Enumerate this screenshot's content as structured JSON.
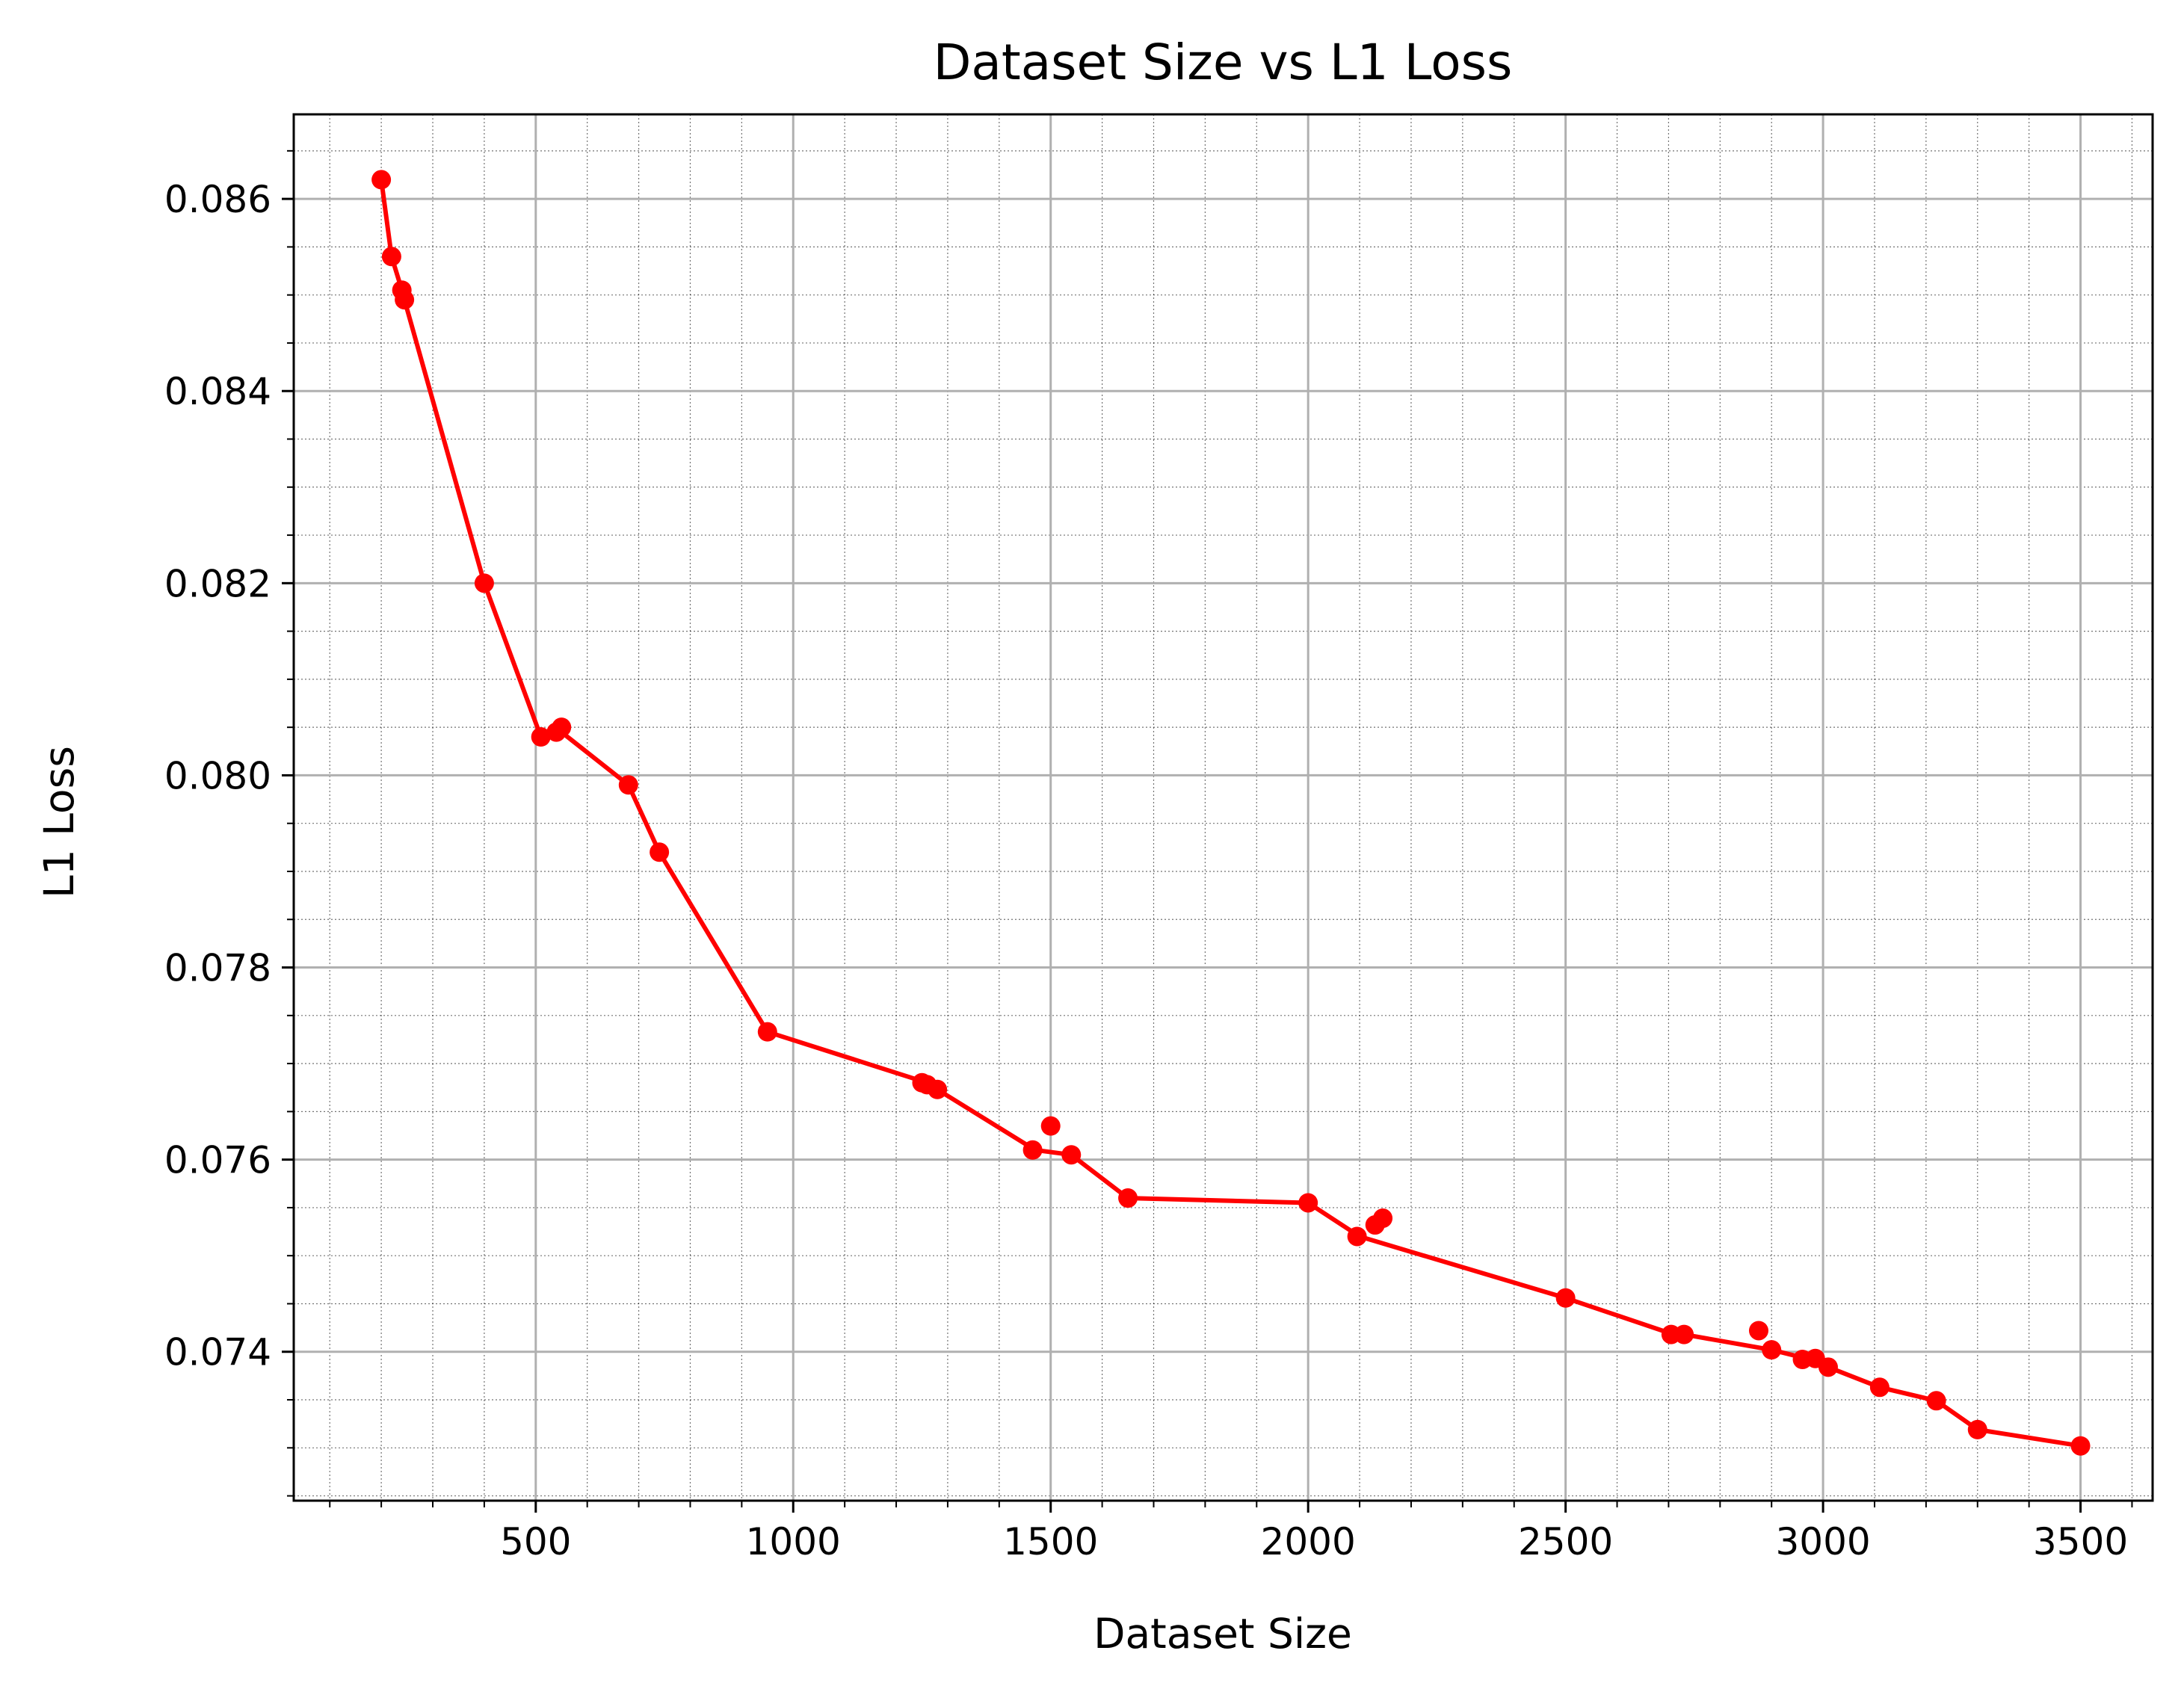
{
  "chart_data": {
    "type": "line",
    "title": "Dataset Size vs L1 Loss",
    "xlabel": "Dataset Size",
    "ylabel": "L1 Loss",
    "xlim": [
      30,
      3640
    ],
    "ylim": [
      0.07245,
      0.08688
    ],
    "xticks": [
      500,
      1000,
      1500,
      2000,
      2500,
      3000,
      3500
    ],
    "xtick_labels": [
      "500",
      "1000",
      "1500",
      "2000",
      "2500",
      "3000",
      "3500"
    ],
    "yticks": [
      0.074,
      0.076,
      0.078,
      0.08,
      0.082,
      0.084,
      0.086
    ],
    "ytick_labels": [
      "0.074",
      "0.076",
      "0.078",
      "0.080",
      "0.082",
      "0.084",
      "0.086"
    ],
    "grid": true,
    "minor_grid": true,
    "color": "#ff0000",
    "series": [
      {
        "line_x": [
          200,
          220,
          240,
          245,
          400,
          510,
          550,
          680,
          740,
          950,
          1260,
          1280,
          1470,
          1540,
          1650,
          2000,
          2100,
          2500,
          2710,
          2730,
          2900,
          2990,
          3010,
          3110,
          3220,
          3300,
          3500
        ],
        "line_y": [
          0.0862,
          0.0854,
          0.08505,
          0.08495,
          0.082,
          0.0804,
          0.08045,
          0.0799,
          0.0792,
          0.07733,
          0.0768,
          0.07673,
          0.0761,
          0.07605,
          0.0756,
          0.07555,
          0.0752,
          0.07456,
          0.07418,
          0.07418,
          0.07402,
          0.0739,
          0.07384,
          0.07363,
          0.07349,
          0.07319,
          0.07302
        ],
        "x": [
          200,
          220,
          240,
          245,
          400,
          510,
          540,
          550,
          680,
          740,
          950,
          1250,
          1260,
          1280,
          1465,
          1500,
          1540,
          1650,
          2000,
          2095,
          2130,
          2145,
          2500,
          2705,
          2730,
          2875,
          2900,
          2960,
          2985,
          3010,
          3110,
          3220,
          3300,
          3500
        ],
        "y": [
          0.0862,
          0.0854,
          0.08505,
          0.08495,
          0.082,
          0.0804,
          0.08045,
          0.0805,
          0.0799,
          0.0792,
          0.07733,
          0.0768,
          0.07678,
          0.07673,
          0.0761,
          0.07635,
          0.07605,
          0.0756,
          0.07555,
          0.0752,
          0.07532,
          0.07539,
          0.07456,
          0.07418,
          0.07418,
          0.07422,
          0.07402,
          0.07392,
          0.07393,
          0.07384,
          0.07363,
          0.07349,
          0.07319,
          0.07302
        ]
      }
    ]
  }
}
